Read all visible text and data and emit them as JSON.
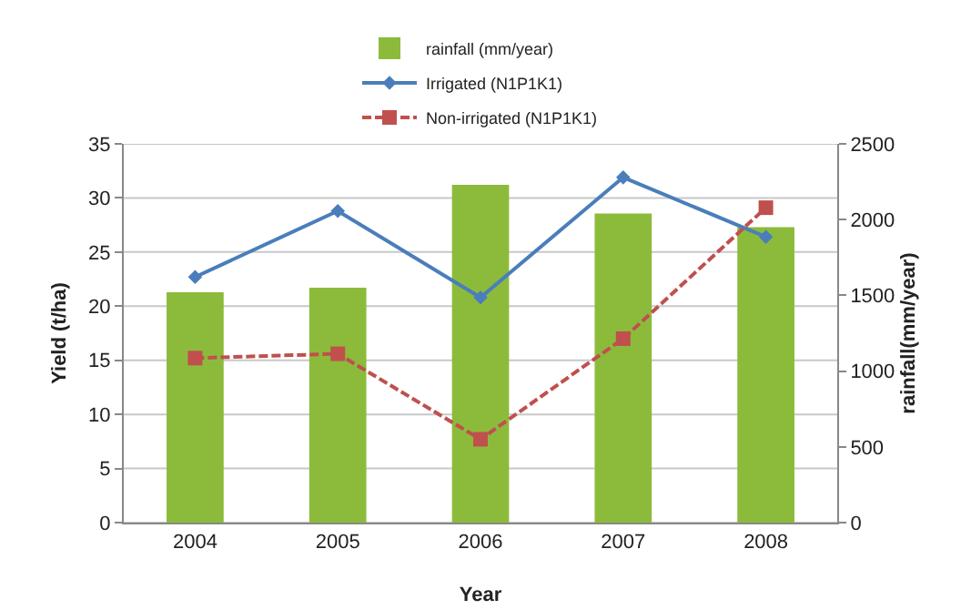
{
  "chart_data": {
    "type": "bar",
    "xlabel": "Year",
    "ylabel": "Yield (t/ha)",
    "y2label": "rainfall(mm/year)",
    "categories": [
      "2004",
      "2005",
      "2006",
      "2007",
      "2008"
    ],
    "series": [
      {
        "name": "rainfall (mm/year)",
        "axis": "y2",
        "color": "#8cbb3c",
        "values": [
          1520,
          1550,
          2230,
          2040,
          1950
        ]
      },
      {
        "name": "Irrigated (N1P1K1)",
        "type": "line",
        "color": "#4a7ebb",
        "marker": "diamond",
        "line_style": "solid",
        "values": [
          22.7,
          28.8,
          20.8,
          31.9,
          26.4
        ]
      },
      {
        "name": "Non-irrigated (N1P1K1)",
        "type": "line",
        "color": "#c0504d",
        "marker": "square",
        "line_style": "dashed",
        "values": [
          15.2,
          15.6,
          7.7,
          17.0,
          29.1
        ]
      }
    ],
    "ylim": [
      0,
      35
    ],
    "yticks": [
      0,
      5,
      10,
      15,
      20,
      25,
      30,
      35
    ],
    "y2lim": [
      0,
      2500
    ],
    "y2ticks": [
      0,
      500,
      1000,
      1500,
      2000,
      2500
    ],
    "grid": "y",
    "legend": "top"
  }
}
